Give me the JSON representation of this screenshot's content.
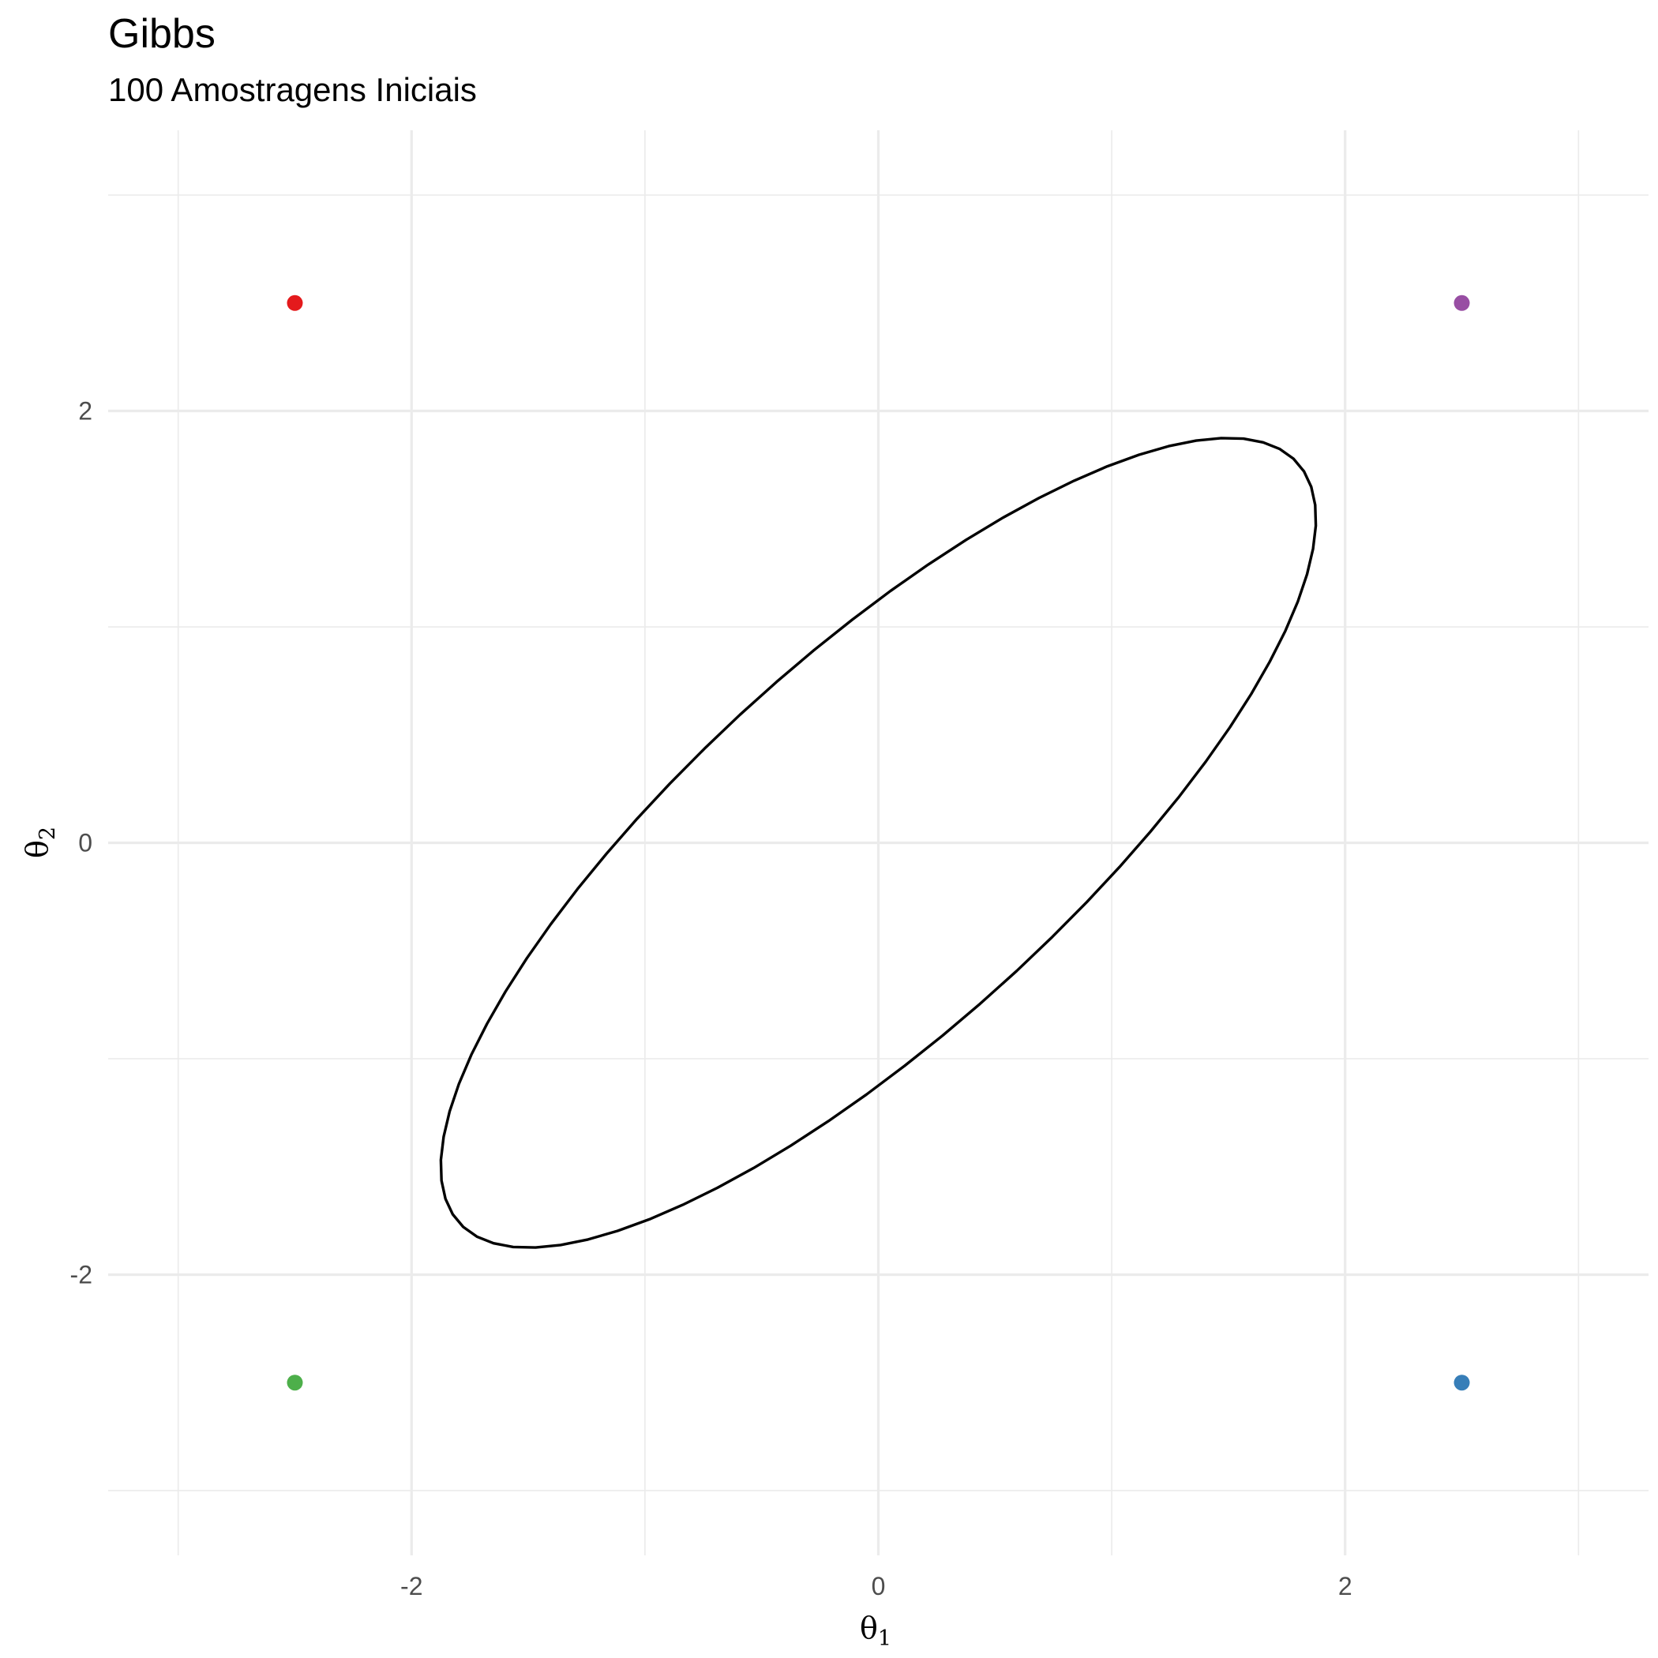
{
  "chart_data": {
    "type": "scatter",
    "title": "Gibbs",
    "subtitle": "100 Amostragens Iniciais",
    "xlabel": {
      "base": "θ",
      "sub": "1"
    },
    "ylabel": {
      "base": "θ",
      "sub": "2"
    },
    "xlim": [
      -3.3,
      3.3
    ],
    "ylim": [
      -3.3,
      3.3
    ],
    "x_ticks": [
      -2,
      0,
      2
    ],
    "y_ticks": [
      -2,
      0,
      2
    ],
    "x_minor": [
      -3,
      -1,
      1,
      3
    ],
    "y_minor": [
      -3,
      -1,
      1,
      3
    ],
    "grid": true,
    "points": [
      {
        "x": -2.5,
        "y": 2.5,
        "color": "#e41a1c"
      },
      {
        "x": 2.5,
        "y": 2.5,
        "color": "#984ea3"
      },
      {
        "x": -2.5,
        "y": -2.5,
        "color": "#4daf4a"
      },
      {
        "x": 2.5,
        "y": -2.5,
        "color": "#377eb8"
      }
    ],
    "contour": {
      "color": "#000000",
      "center": [
        0,
        0
      ],
      "rho": 0.8,
      "level_radius": 1.875
    }
  }
}
